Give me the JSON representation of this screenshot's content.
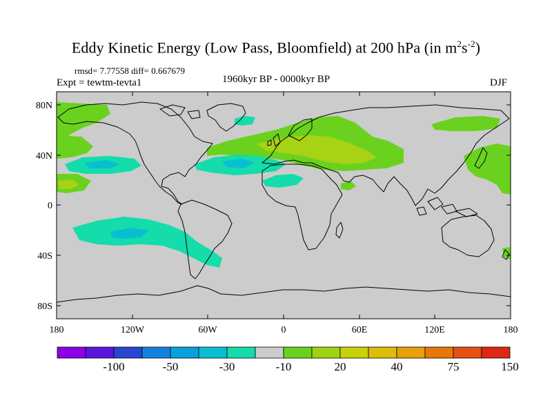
{
  "header": {
    "title_main": "Eddy Kinetic Energy (Low Pass, Bloomfield) at 200 hPa (in m",
    "title_sup1": "2",
    "title_s": "s",
    "title_sup2": "-2",
    "title_close": ")",
    "stats": "rmsd= 7.77558 diff= 0.667679",
    "expt": "Expt = tewtm-tevta1",
    "period": "1960kyr BP - 0000kyr BP",
    "season": "DJF"
  },
  "axes": {
    "x_ticks": [
      "180",
      "120W",
      "60W",
      "0",
      "60E",
      "120E",
      "180"
    ],
    "y_ticks": [
      "80N",
      "40N",
      "0",
      "40S",
      "80S"
    ]
  },
  "colorbar": {
    "colors": [
      "#8c00e6",
      "#5a14dc",
      "#2846d2",
      "#1482dc",
      "#0aa0dc",
      "#0abed2",
      "#14dcaa",
      "#cccccc",
      "#6ad21e",
      "#a0d214",
      "#c8d20a",
      "#dcbe0a",
      "#e6a00a",
      "#e6780a",
      "#e65014",
      "#dc2814"
    ],
    "labels": [
      "-100",
      "-50",
      "-30",
      "-10",
      "20",
      "40",
      "75",
      "150"
    ]
  },
  "colors": {
    "ocean": "#cccccc",
    "positive_weak": "#6ad21e",
    "positive_mid": "#a8d214",
    "negative_weak": "#14dcaa",
    "negative_mid": "#0abed2"
  }
}
